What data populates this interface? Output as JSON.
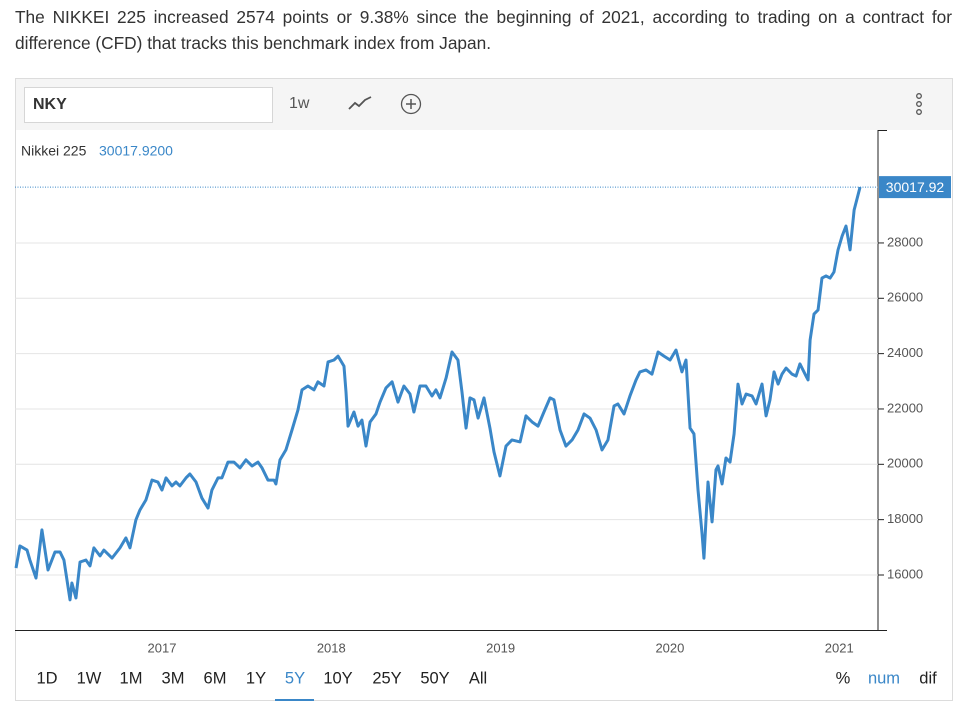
{
  "intro": "The NIKKEI 225 increased 2574 points or 9.38% since the beginning of 2021, according to trading on a contract for difference (CFD) that tracks this benchmark index from Japan.",
  "toolbar": {
    "symbol": "NKY",
    "interval": "1w"
  },
  "chart_data": {
    "type": "line",
    "x": [
      2016.138,
      2016.161,
      2016.203,
      2016.22,
      2016.256,
      2016.291,
      2016.327,
      2016.368,
      2016.398,
      2016.421,
      2016.457,
      2016.468,
      2016.492,
      2016.516,
      2016.551,
      2016.575,
      2016.598,
      2016.634,
      2016.657,
      2016.705,
      2016.752,
      2016.787,
      2016.811,
      2016.846,
      2016.87,
      2016.905,
      2016.941,
      2016.976,
      2017.0,
      2017.024,
      2017.059,
      2017.083,
      2017.106,
      2017.142,
      2017.165,
      2017.201,
      2017.236,
      2017.272,
      2017.295,
      2017.331,
      2017.354,
      2017.39,
      2017.425,
      2017.461,
      2017.496,
      2017.532,
      2017.567,
      2017.591,
      2017.626,
      2017.662,
      2017.673,
      2017.697,
      2017.732,
      2017.768,
      2017.803,
      2017.827,
      2017.862,
      2017.898,
      2017.921,
      2017.957,
      2017.981,
      2018.016,
      2018.04,
      2018.075,
      2018.087,
      2018.099,
      2018.134,
      2018.158,
      2018.181,
      2018.205,
      2018.229,
      2018.264,
      2018.288,
      2018.323,
      2018.359,
      2018.394,
      2018.429,
      2018.465,
      2018.488,
      2018.524,
      2018.559,
      2018.595,
      2018.618,
      2018.642,
      2018.678,
      2018.713,
      2018.748,
      2018.772,
      2018.796,
      2018.819,
      2018.843,
      2018.867,
      2018.902,
      2018.937,
      2018.961,
      2018.996,
      2019.032,
      2019.067,
      2019.115,
      2019.15,
      2019.186,
      2019.221,
      2019.256,
      2019.292,
      2019.315,
      2019.351,
      2019.386,
      2019.422,
      2019.457,
      2019.493,
      2019.528,
      2019.564,
      2019.599,
      2019.634,
      2019.67,
      2019.693,
      2019.729,
      2019.764,
      2019.8,
      2019.823,
      2019.859,
      2019.894,
      2019.93,
      2019.965,
      2020.001,
      2020.036,
      2020.071,
      2020.095,
      2020.119,
      2020.142,
      2020.166,
      2020.19,
      2020.201,
      2020.225,
      2020.249,
      2020.272,
      2020.284,
      2020.308,
      2020.331,
      2020.355,
      2020.379,
      2020.402,
      2020.426,
      2020.45,
      2020.485,
      2020.509,
      2020.544,
      2020.568,
      2020.591,
      2020.615,
      2020.639,
      2020.662,
      2020.686,
      2020.721,
      2020.745,
      2020.768,
      2020.804,
      2020.816,
      2020.828,
      2020.851,
      2020.875,
      2020.898,
      2020.922,
      2020.946,
      2020.969,
      2020.993,
      2021.017,
      2021.04,
      2021.064,
      2021.088,
      2021.123
    ],
    "series": [
      {
        "name": "Nikkei 225",
        "color": "#3a87c8",
        "values": [
          16250,
          17050,
          16900,
          16540,
          15890,
          17630,
          16180,
          16830,
          16830,
          16540,
          15100,
          15710,
          15170,
          16470,
          16540,
          16330,
          16980,
          16690,
          16900,
          16610,
          16980,
          17340,
          16980,
          17990,
          18350,
          18710,
          19430,
          19360,
          19070,
          19510,
          19220,
          19360,
          19220,
          19510,
          19650,
          19360,
          18780,
          18420,
          19070,
          19510,
          19510,
          20080,
          20080,
          19870,
          20160,
          19940,
          20080,
          19870,
          19430,
          19430,
          19290,
          20160,
          20520,
          21240,
          21960,
          22690,
          22830,
          22690,
          22980,
          22830,
          23700,
          23770,
          23910,
          23550,
          22610,
          21380,
          21890,
          21380,
          21600,
          20660,
          21530,
          21820,
          22250,
          22760,
          22980,
          22250,
          22830,
          22540,
          21890,
          22830,
          22830,
          22470,
          22690,
          22400,
          23120,
          24060,
          23770,
          22610,
          21310,
          22400,
          22330,
          21670,
          22400,
          21310,
          20450,
          19580,
          20660,
          20880,
          20810,
          21750,
          21530,
          21380,
          21890,
          22400,
          22330,
          21240,
          20660,
          20880,
          21240,
          21820,
          21670,
          21240,
          20520,
          20880,
          22110,
          22180,
          21820,
          22470,
          23050,
          23340,
          23410,
          23260,
          24060,
          23910,
          23770,
          24130,
          23340,
          23770,
          21310,
          21100,
          19070,
          17480,
          16610,
          19360,
          17920,
          19800,
          19940,
          19290,
          20230,
          20080,
          21100,
          22900,
          22180,
          22540,
          22470,
          22180,
          22900,
          21750,
          22330,
          23340,
          22900,
          23260,
          23480,
          23260,
          23190,
          23630,
          23190,
          23050,
          24490,
          25430,
          25580,
          26730,
          26810,
          26730,
          26950,
          27750,
          28250,
          28610,
          27750,
          29190,
          30017.92
        ]
      }
    ],
    "legend_value": "30017.9200",
    "xlim": [
      2016.132,
      2021.229
    ],
    "xticks": [
      2017,
      2018,
      2019,
      2020,
      2021
    ],
    "ylim": [
      14012,
      32082
    ],
    "yticks": [
      16000,
      18000,
      20000,
      22000,
      24000,
      26000,
      28000
    ],
    "grid": true
  },
  "ranges": [
    "1D",
    "1W",
    "1M",
    "3M",
    "6M",
    "1Y",
    "5Y",
    "10Y",
    "25Y",
    "50Y",
    "All"
  ],
  "selected_range": "5Y",
  "modes": [
    "%",
    "num",
    "dif"
  ],
  "selected_mode": "num"
}
